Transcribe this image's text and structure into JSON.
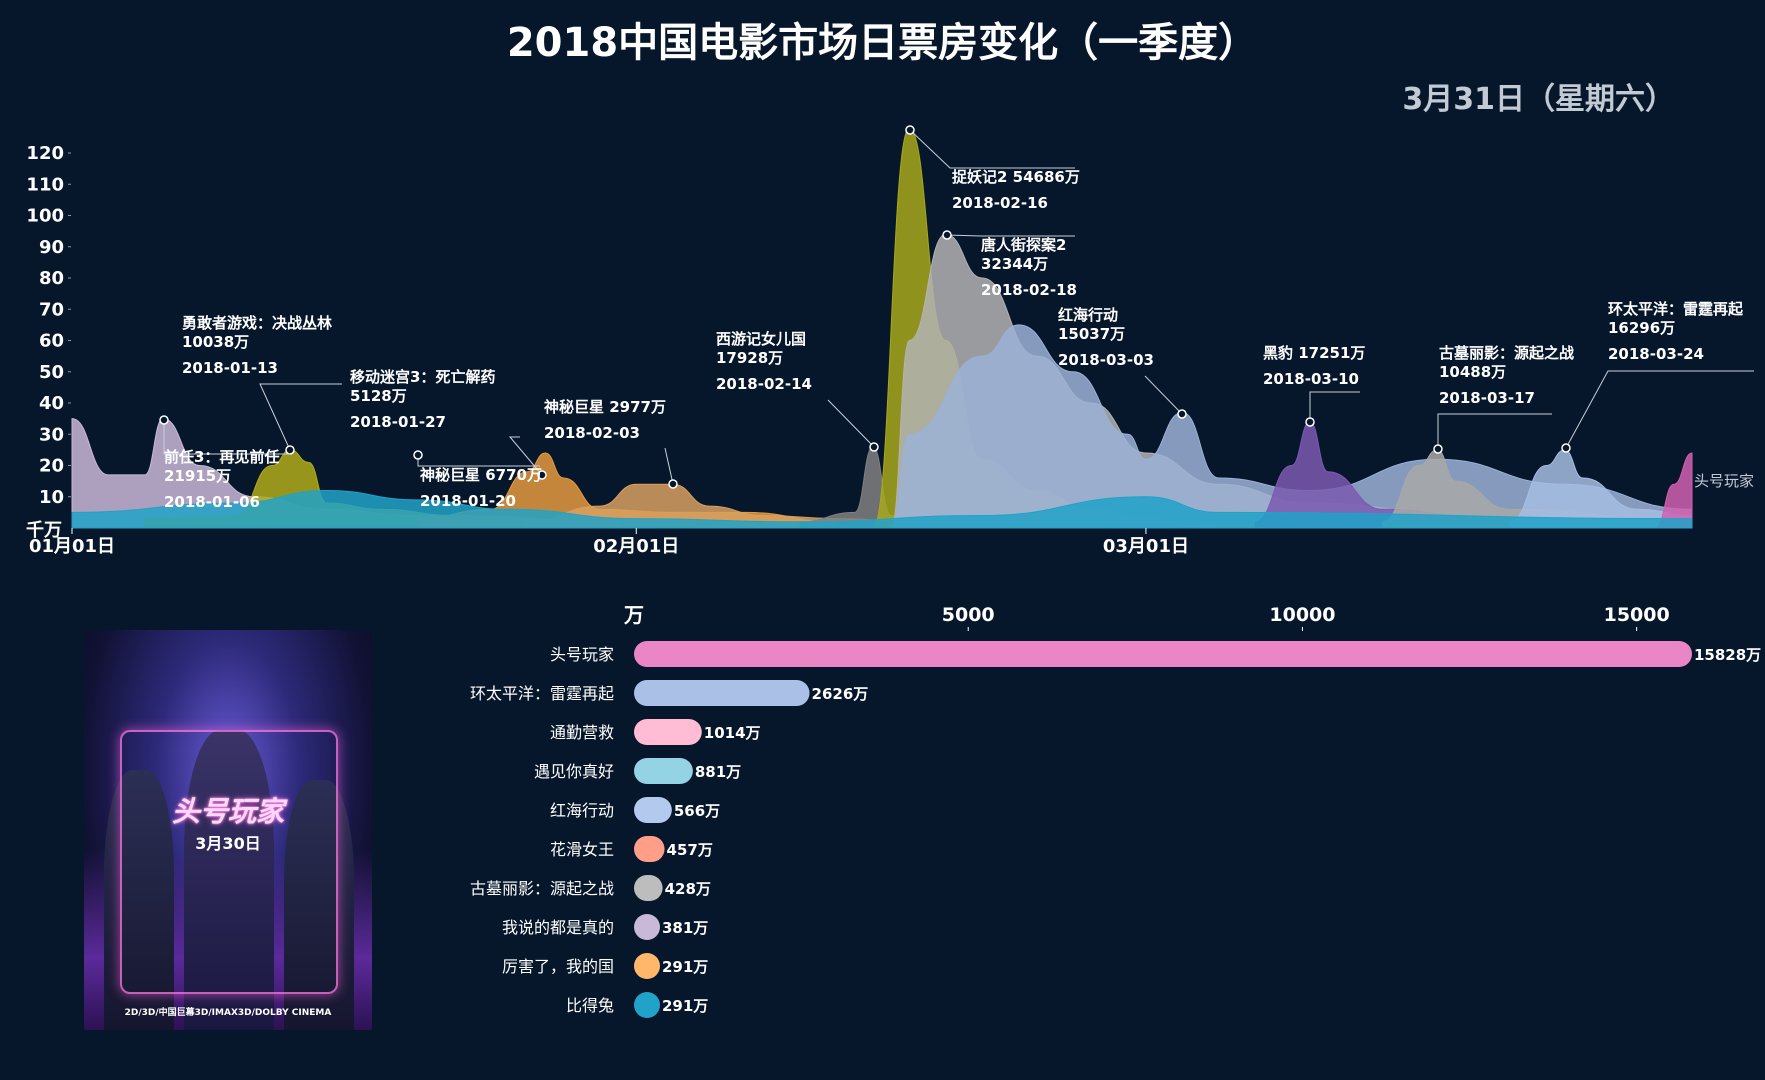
{
  "page": {
    "title": "2018中国电影市场日票房变化（一季度）",
    "date_readout": "3月31日（星期六）"
  },
  "colors": {
    "background": "#07172b",
    "text": "#ffffff",
    "muted": "#c2cad4"
  },
  "poster": {
    "icon": "movie-poster-ready-player-one",
    "title": "头号玩家",
    "date": "3月30日",
    "subtitle": "",
    "top_text": "",
    "bottom_text": "2D/3D/中国巨幕3D/IMAX3D/DOLBY CINEMA"
  },
  "chart_data": [
    {
      "type": "area",
      "title": "",
      "ylabel": "千万",
      "ylim": [
        0,
        120
      ],
      "yticks": [
        10,
        20,
        30,
        40,
        50,
        60,
        70,
        80,
        90,
        100,
        110,
        120
      ],
      "xlim": [
        "2018-01-01",
        "2018-03-31"
      ],
      "x_ticks": [
        {
          "date": "2018-01-01",
          "label": "01月01日"
        },
        {
          "date": "2018-02-01",
          "label": "02月01日"
        },
        {
          "date": "2018-03-01",
          "label": "03月01日"
        }
      ],
      "stacked": false,
      "series": [
        {
          "name": "前任3：再见前任",
          "color": "#c9b8d8",
          "points": [
            [
              "2018-01-01",
              35
            ],
            [
              "2018-01-03",
              17
            ],
            [
              "2018-01-05",
              17
            ],
            [
              "2018-01-06",
              35
            ],
            [
              "2018-01-08",
              20
            ],
            [
              "2018-01-11",
              10
            ],
            [
              "2018-01-15",
              6
            ],
            [
              "2018-01-20",
              4
            ],
            [
              "2018-01-31",
              2
            ]
          ]
        },
        {
          "name": "勇敢者游戏：决战丛林",
          "color": "#b0ab1a",
          "points": [
            [
              "2018-01-05",
              3
            ],
            [
              "2018-01-10",
              4
            ],
            [
              "2018-01-12",
              20
            ],
            [
              "2018-01-13",
              25
            ],
            [
              "2018-01-14",
              21
            ],
            [
              "2018-01-15",
              8
            ],
            [
              "2018-01-18",
              6
            ],
            [
              "2018-01-22",
              4
            ],
            [
              "2018-01-31",
              2
            ]
          ]
        },
        {
          "name": "移动迷宫3：死亡解药",
          "color": "#e49a3e",
          "points": [
            [
              "2018-01-20",
              3
            ],
            [
              "2018-01-24",
              6
            ],
            [
              "2018-01-26",
              18
            ],
            [
              "2018-01-27",
              24
            ],
            [
              "2018-01-28",
              16
            ],
            [
              "2018-01-30",
              6
            ],
            [
              "2018-02-03",
              5
            ],
            [
              "2018-02-07",
              5
            ],
            [
              "2018-02-12",
              2
            ]
          ]
        },
        {
          "name": "神秘巨星",
          "color": "#d8a060",
          "points": [
            [
              "2018-01-26",
              2
            ],
            [
              "2018-01-30",
              7
            ],
            [
              "2018-02-01",
              14
            ],
            [
              "2018-02-03",
              14
            ],
            [
              "2018-02-05",
              7
            ],
            [
              "2018-02-08",
              4
            ],
            [
              "2018-02-12",
              3
            ],
            [
              "2018-02-18",
              1
            ]
          ]
        },
        {
          "name": "西游记女儿国",
          "color": "#808080",
          "points": [
            [
              "2018-02-10",
              2
            ],
            [
              "2018-02-13",
              5
            ],
            [
              "2018-02-14",
              26
            ],
            [
              "2018-02-15",
              4
            ],
            [
              "2018-02-16",
              1
            ]
          ]
        },
        {
          "name": "捉妖记2",
          "color": "#a8a81c",
          "points": [
            [
              "2018-02-14",
              0
            ],
            [
              "2018-02-16",
              128
            ],
            [
              "2018-02-18",
              60
            ],
            [
              "2018-02-20",
              22
            ],
            [
              "2018-02-23",
              12
            ],
            [
              "2018-02-26",
              6
            ],
            [
              "2018-03-01",
              3
            ],
            [
              "2018-03-05",
              1
            ]
          ]
        },
        {
          "name": "唐人街探案2",
          "color": "#b3b3b3",
          "points": [
            [
              "2018-02-15",
              0
            ],
            [
              "2018-02-16",
              60
            ],
            [
              "2018-02-18",
              94
            ],
            [
              "2018-02-20",
              80
            ],
            [
              "2018-02-23",
              55
            ],
            [
              "2018-02-26",
              40
            ],
            [
              "2018-03-01",
              24
            ],
            [
              "2018-03-05",
              14
            ],
            [
              "2018-03-10",
              8
            ],
            [
              "2018-03-20",
              3
            ]
          ]
        },
        {
          "name": "红海行动",
          "color": "#9bb1d6",
          "points": [
            [
              "2018-02-15",
              0
            ],
            [
              "2018-02-16",
              30
            ],
            [
              "2018-02-20",
              55
            ],
            [
              "2018-02-22",
              65
            ],
            [
              "2018-02-25",
              50
            ],
            [
              "2018-02-28",
              30
            ],
            [
              "2018-03-01",
              22
            ],
            [
              "2018-03-03",
              37
            ],
            [
              "2018-03-05",
              16
            ],
            [
              "2018-03-10",
              12
            ],
            [
              "2018-03-17",
              22
            ],
            [
              "2018-03-24",
              14
            ],
            [
              "2018-03-31",
              6
            ]
          ]
        },
        {
          "name": "黑豹",
          "color": "#7b5bb0",
          "points": [
            [
              "2018-03-07",
              2
            ],
            [
              "2018-03-09",
              20
            ],
            [
              "2018-03-10",
              34
            ],
            [
              "2018-03-11",
              18
            ],
            [
              "2018-03-14",
              6
            ],
            [
              "2018-03-20",
              3
            ],
            [
              "2018-03-31",
              1
            ]
          ]
        },
        {
          "name": "古墓丽影：源起之战",
          "color": "#a8a8a8",
          "points": [
            [
              "2018-03-14",
              2
            ],
            [
              "2018-03-16",
              20
            ],
            [
              "2018-03-17",
              25
            ],
            [
              "2018-03-18",
              15
            ],
            [
              "2018-03-21",
              6
            ],
            [
              "2018-03-31",
              2
            ]
          ]
        },
        {
          "name": "环太平洋：雷霆再起",
          "color": "#a6bde3",
          "points": [
            [
              "2018-03-21",
              2
            ],
            [
              "2018-03-23",
              20
            ],
            [
              "2018-03-24",
              25
            ],
            [
              "2018-03-25",
              16
            ],
            [
              "2018-03-28",
              6
            ],
            [
              "2018-03-31",
              4
            ]
          ]
        },
        {
          "name": "头号玩家",
          "color": "#d060b0",
          "points": [
            [
              "2018-03-29",
              0
            ],
            [
              "2018-03-30",
              14
            ],
            [
              "2018-03-31",
              24
            ]
          ]
        },
        {
          "name": "通勤营救",
          "color": "#21a2c8",
          "points": [
            [
              "2018-01-01",
              5
            ],
            [
              "2018-01-10",
              8
            ],
            [
              "2018-01-15",
              12
            ],
            [
              "2018-01-20",
              9
            ],
            [
              "2018-01-25",
              6
            ],
            [
              "2018-02-01",
              3
            ],
            [
              "2018-02-10",
              2
            ],
            [
              "2018-02-20",
              4
            ],
            [
              "2018-03-01",
              10
            ],
            [
              "2018-03-05",
              5
            ],
            [
              "2018-03-31",
              3
            ]
          ]
        }
      ],
      "annotations": [
        {
          "title": "勇敢者游戏：决战丛林",
          "value": "10038万",
          "date": "2018-01-13"
        },
        {
          "title": "前任3：再见前任",
          "value": "21915万",
          "date": "2018-01-06"
        },
        {
          "title": "移动迷宫3：死亡解药",
          "value": "5128万",
          "date": "2018-01-27"
        },
        {
          "title": "神秘巨星 6770万",
          "value": "",
          "date": "2018-01-20"
        },
        {
          "title": "神秘巨星 2977万",
          "value": "",
          "date": "2018-02-03"
        },
        {
          "title": "西游记女儿国",
          "value": "17928万",
          "date": "2018-02-14"
        },
        {
          "title": "捉妖记2 54686万",
          "value": "",
          "date": "2018-02-16"
        },
        {
          "title": "唐人街探案2",
          "value": "32344万",
          "date": "2018-02-18"
        },
        {
          "title": "红海行动",
          "value": "15037万",
          "date": "2018-03-03"
        },
        {
          "title": "黑豹 17251万",
          "value": "",
          "date": "2018-03-10"
        },
        {
          "title": "古墓丽影：源起之战",
          "value": "10488万",
          "date": "2018-03-17"
        },
        {
          "title": "环太平洋：雷霆再起",
          "value": "16296万",
          "date": "2018-03-24"
        }
      ],
      "end_label": "头号玩家"
    },
    {
      "type": "bar",
      "orientation": "horizontal",
      "xlabel": "万",
      "xlim": [
        0,
        15828
      ],
      "xticks": [
        5000,
        10000,
        15000
      ],
      "categories": [
        "头号玩家",
        "环太平洋：雷霆再起",
        "通勤营救",
        "遇见你真好",
        "红海行动",
        "花滑女王",
        "古墓丽影：源起之战",
        "我说的都是真的",
        "厉害了，我的国",
        "比得兔"
      ],
      "values": [
        15828,
        2626,
        1014,
        881,
        566,
        457,
        428,
        381,
        291,
        291
      ],
      "value_labels": [
        "15828万",
        "2626万",
        "1014万",
        "881万",
        "566万",
        "457万",
        "428万",
        "381万",
        "291万",
        "291万"
      ],
      "colors": [
        "#ea86c6",
        "#aac0e6",
        "#ffbcd4",
        "#93d3e3",
        "#b4c9ee",
        "#ff9f8a",
        "#bdbdbd",
        "#c9b8d8",
        "#ffb86b",
        "#21a2c8"
      ]
    }
  ]
}
